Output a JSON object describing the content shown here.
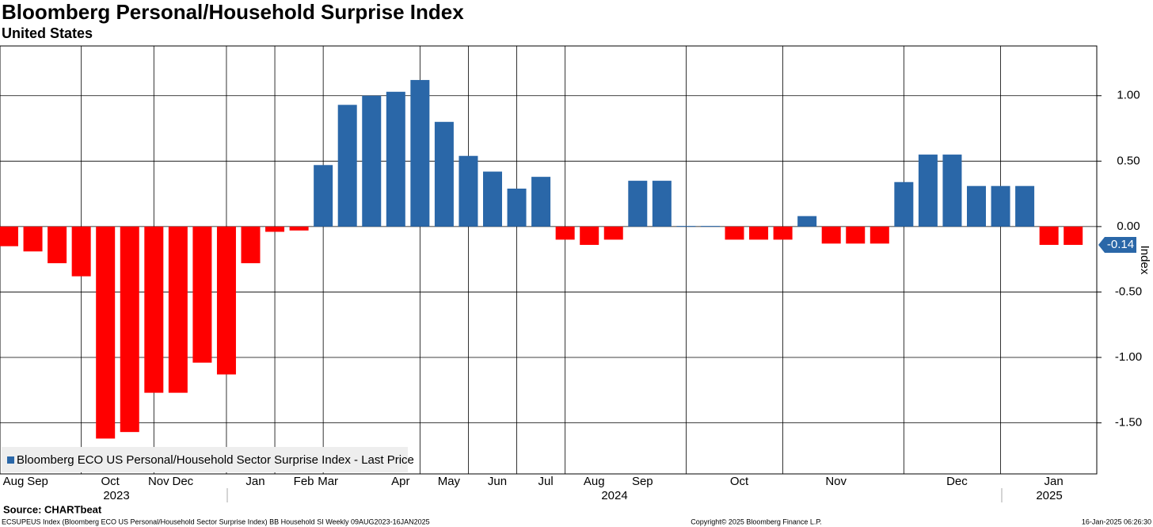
{
  "chart_data": {
    "type": "bar",
    "title": "Bloomberg Personal/Household Surprise Index",
    "subtitle": "United States",
    "y_axis_label": "Index",
    "series": [
      {
        "name": "Bloomberg ECO US Personal/Household Sector Surprise Index - Last Price",
        "color": "#2a67a8",
        "values": [
          -0.15,
          -0.19,
          -0.28,
          -0.38,
          -1.62,
          -1.57,
          -1.27,
          -1.27,
          -1.04,
          -1.13,
          -0.28,
          -0.04,
          -0.03,
          0.47,
          0.93,
          1.0,
          1.03,
          1.12,
          0.8,
          0.54,
          0.42,
          0.29,
          0.38,
          -0.1,
          -0.14,
          -0.1,
          0.35,
          0.35,
          0.005,
          0.005,
          -0.1,
          -0.1,
          -0.1,
          0.08,
          -0.13,
          -0.13,
          -0.13,
          0.34,
          0.55,
          0.55,
          0.31,
          0.31,
          0.31,
          -0.14,
          -0.14
        ]
      }
    ],
    "categories": [
      "Aug",
      "Sep",
      null,
      null,
      "Oct",
      null,
      "Nov",
      "Dec",
      null,
      null,
      "Jan",
      null,
      "Feb",
      "Mar",
      null,
      null,
      "Apr",
      null,
      "May",
      null,
      "Jun",
      null,
      "Jul",
      null,
      "Aug",
      null,
      "Sep",
      null,
      null,
      null,
      "Oct",
      null,
      null,
      null,
      "Nov",
      null,
      null,
      null,
      null,
      "Dec",
      null,
      null,
      null,
      "Jan",
      null
    ],
    "years": [
      "2023",
      "2024",
      "2025"
    ],
    "positive_color": "#2a67a8",
    "negative_color": "#ff0000",
    "last_value": -0.14,
    "ylim": [
      -1.89,
      1.38
    ],
    "yticks": [
      {
        "value": 1,
        "label": "1.00"
      },
      {
        "value": 0.5,
        "label": "0.50"
      },
      {
        "value": 0,
        "label": "0.00"
      },
      {
        "value": -0.5,
        "label": "-0.50"
      },
      {
        "value": -1,
        "label": "-1.00"
      },
      {
        "value": -1.5,
        "label": "-1.50"
      }
    ],
    "grid": true,
    "legend": "lower left",
    "source": "Source: CHARTbeat",
    "footer_left": "ECSUPEUS Index (Bloomberg ECO US Personal/Household Sector Surprise Index) BB Household SI  Weekly 09AUG2023-16JAN2025",
    "footer_center": "Copyright© 2025 Bloomberg Finance L.P.",
    "footer_right": "16-Jan-2025 06:26:30"
  }
}
